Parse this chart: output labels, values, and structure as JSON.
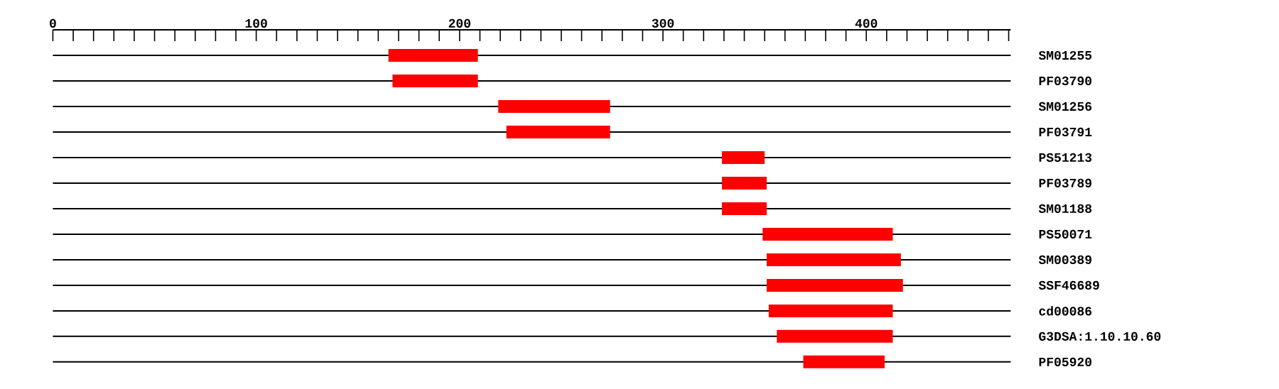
{
  "chart_data": {
    "type": "bar",
    "orientation": "horizontal",
    "color": "#ff0000",
    "grid": "y",
    "categories": [
      "SM01255",
      "PF03790",
      "SM01256",
      "PF03791",
      "PS51213",
      "PF03789",
      "SM01188",
      "PS50071",
      "SM00389",
      "SSF46689",
      "cd00086",
      "G3DSA:1.10.10.60",
      "PF05920"
    ],
    "base": [
      165,
      167,
      219,
      223,
      329,
      329,
      329,
      349,
      351,
      351,
      352,
      356,
      369
    ],
    "values": [
      44,
      42,
      55,
      51,
      21,
      22,
      22,
      64,
      66,
      67,
      61,
      57,
      40
    ],
    "xlim": [
      0,
      471
    ],
    "xticks": [
      0,
      {
        "value": 10,
        "label": null
      },
      {
        "value": 20,
        "label": null
      },
      {
        "value": 30,
        "label": null
      },
      {
        "value": 40,
        "label": null
      },
      {
        "value": 50,
        "label": null
      },
      {
        "value": 60,
        "label": null
      },
      {
        "value": 70,
        "label": null
      },
      {
        "value": 80,
        "label": null
      },
      {
        "value": 90,
        "label": null
      },
      100,
      {
        "value": 110,
        "label": null
      },
      {
        "value": 120,
        "label": null
      },
      {
        "value": 130,
        "label": null
      },
      {
        "value": 140,
        "label": null
      },
      {
        "value": 150,
        "label": null
      },
      {
        "value": 160,
        "label": null
      },
      {
        "value": 170,
        "label": null
      },
      {
        "value": 180,
        "label": null
      },
      {
        "value": 190,
        "label": null
      },
      200,
      {
        "value": 210,
        "label": null
      },
      {
        "value": 220,
        "label": null
      },
      {
        "value": 230,
        "label": null
      },
      {
        "value": 240,
        "label": null
      },
      {
        "value": 250,
        "label": null
      },
      {
        "value": 260,
        "label": null
      },
      {
        "value": 270,
        "label": null
      },
      {
        "value": 280,
        "label": null
      },
      {
        "value": 290,
        "label": null
      },
      300,
      {
        "value": 310,
        "label": null
      },
      {
        "value": 320,
        "label": null
      },
      {
        "value": 330,
        "label": null
      },
      {
        "value": 340,
        "label": null
      },
      {
        "value": 350,
        "label": null
      },
      {
        "value": 360,
        "label": null
      },
      {
        "value": 370,
        "label": null
      },
      {
        "value": 380,
        "label": null
      },
      {
        "value": 390,
        "label": null
      },
      400,
      {
        "value": 410,
        "label": null
      },
      {
        "value": 420,
        "label": null
      },
      {
        "value": 430,
        "label": null
      },
      {
        "value": 440,
        "label": null
      },
      {
        "value": 450,
        "label": null
      },
      {
        "value": 460,
        "label": null
      },
      {
        "value": 470,
        "label": null
      }
    ]
  }
}
